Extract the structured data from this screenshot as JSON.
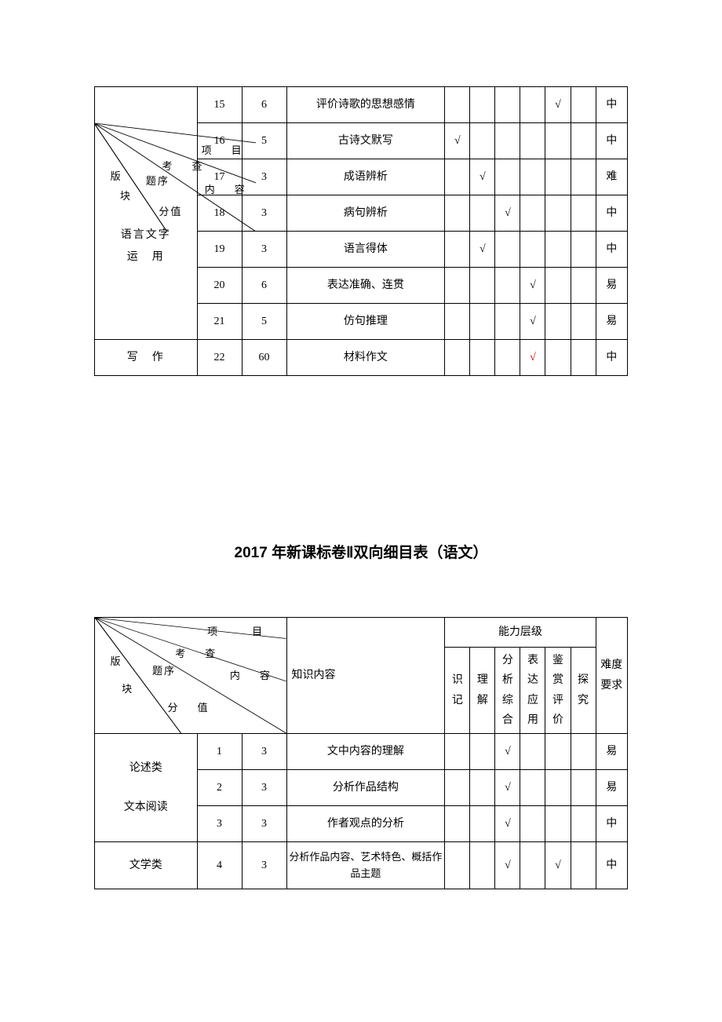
{
  "table1": {
    "overlay_labels": {
      "xiangmu": "项　目",
      "kaocha": "考　查",
      "ban": "版",
      "kuai": "块",
      "tixu": "题序",
      "neirong": "内　容",
      "fenzhi": "分值"
    },
    "sections": [
      {
        "name_lines": [
          "",
          "",
          "",
          "语言文字",
          "运　用"
        ],
        "rowspan": 7,
        "rows": [
          {
            "num": "15",
            "score": "6",
            "content": "评价诗歌的思想感情",
            "checks": [
              "",
              "",
              "",
              "",
              "√",
              ""
            ],
            "diff": "中"
          },
          {
            "num": "16",
            "score": "5",
            "content": "古诗文默写",
            "checks": [
              "√",
              "",
              "",
              "",
              "",
              ""
            ],
            "diff": "中"
          },
          {
            "num": "17",
            "score": "3",
            "content": "成语辨析",
            "checks": [
              "",
              "√",
              "",
              "",
              "",
              ""
            ],
            "diff": "难"
          },
          {
            "num": "18",
            "score": "3",
            "content": "病句辨析",
            "checks": [
              "",
              "",
              "√",
              "",
              "",
              ""
            ],
            "diff": "中"
          },
          {
            "num": "19",
            "score": "3",
            "content": "语言得体",
            "checks": [
              "",
              "√",
              "",
              "",
              "",
              ""
            ],
            "diff": "中"
          },
          {
            "num": "20",
            "score": "6",
            "content": "表达准确、连贯",
            "checks": [
              "",
              "",
              "",
              "√",
              "",
              ""
            ],
            "diff": "易"
          },
          {
            "num": "21",
            "score": "5",
            "content": "仿句推理",
            "checks": [
              "",
              "",
              "",
              "√",
              "",
              ""
            ],
            "diff": "易"
          }
        ]
      },
      {
        "name": "写　作",
        "rowspan": 1,
        "rows": [
          {
            "num": "22",
            "score": "60",
            "content": "材料作文",
            "checks": [
              "",
              "",
              "",
              "",
              "",
              ""
            ],
            "check_red_idx": 3,
            "diff": "中"
          }
        ]
      }
    ]
  },
  "title2": "2017 年新课标卷Ⅱ双向细目表（语文）",
  "table2": {
    "header": {
      "diag_labels": {
        "xiangmu": "项　　目",
        "kaocha": "考　查",
        "ban": "版",
        "kuai": "块",
        "tixu": "题序",
        "neirong": "内　容",
        "fenzhi": "分　值"
      },
      "knowledge": "知识内容",
      "ability_group": "能力层级",
      "difficulty": "难度要求",
      "abilities": [
        "识记",
        "理解",
        "分析综合",
        "表达应用",
        "鉴赏评价",
        "探究"
      ]
    },
    "sections": [
      {
        "name": "论述类文本阅读",
        "name_html": "论述类<br><br>文本阅读",
        "rowspan": 3,
        "rows": [
          {
            "num": "1",
            "score": "3",
            "content": "文中内容的理解",
            "checks": [
              "",
              "",
              "√",
              "",
              "",
              ""
            ],
            "diff": "易"
          },
          {
            "num": "2",
            "score": "3",
            "content": "分析作品结构",
            "checks": [
              "",
              "",
              "√",
              "",
              "",
              ""
            ],
            "diff": "易"
          },
          {
            "num": "3",
            "score": "3",
            "content": "作者观点的分析",
            "checks": [
              "",
              "",
              "√",
              "",
              "",
              ""
            ],
            "diff": "中"
          }
        ]
      },
      {
        "name": "文学类",
        "rowspan": 1,
        "rows": [
          {
            "num": "4",
            "score": "3",
            "content": "分析作品内容、艺术特色、概括作品主题",
            "checks": [
              "",
              "",
              "√",
              "",
              "√",
              ""
            ],
            "diff": "中",
            "tall": true
          }
        ]
      }
    ]
  },
  "colors": {
    "border": "#000000",
    "text": "#000000",
    "red_check": "#c00000",
    "background": "#ffffff"
  }
}
